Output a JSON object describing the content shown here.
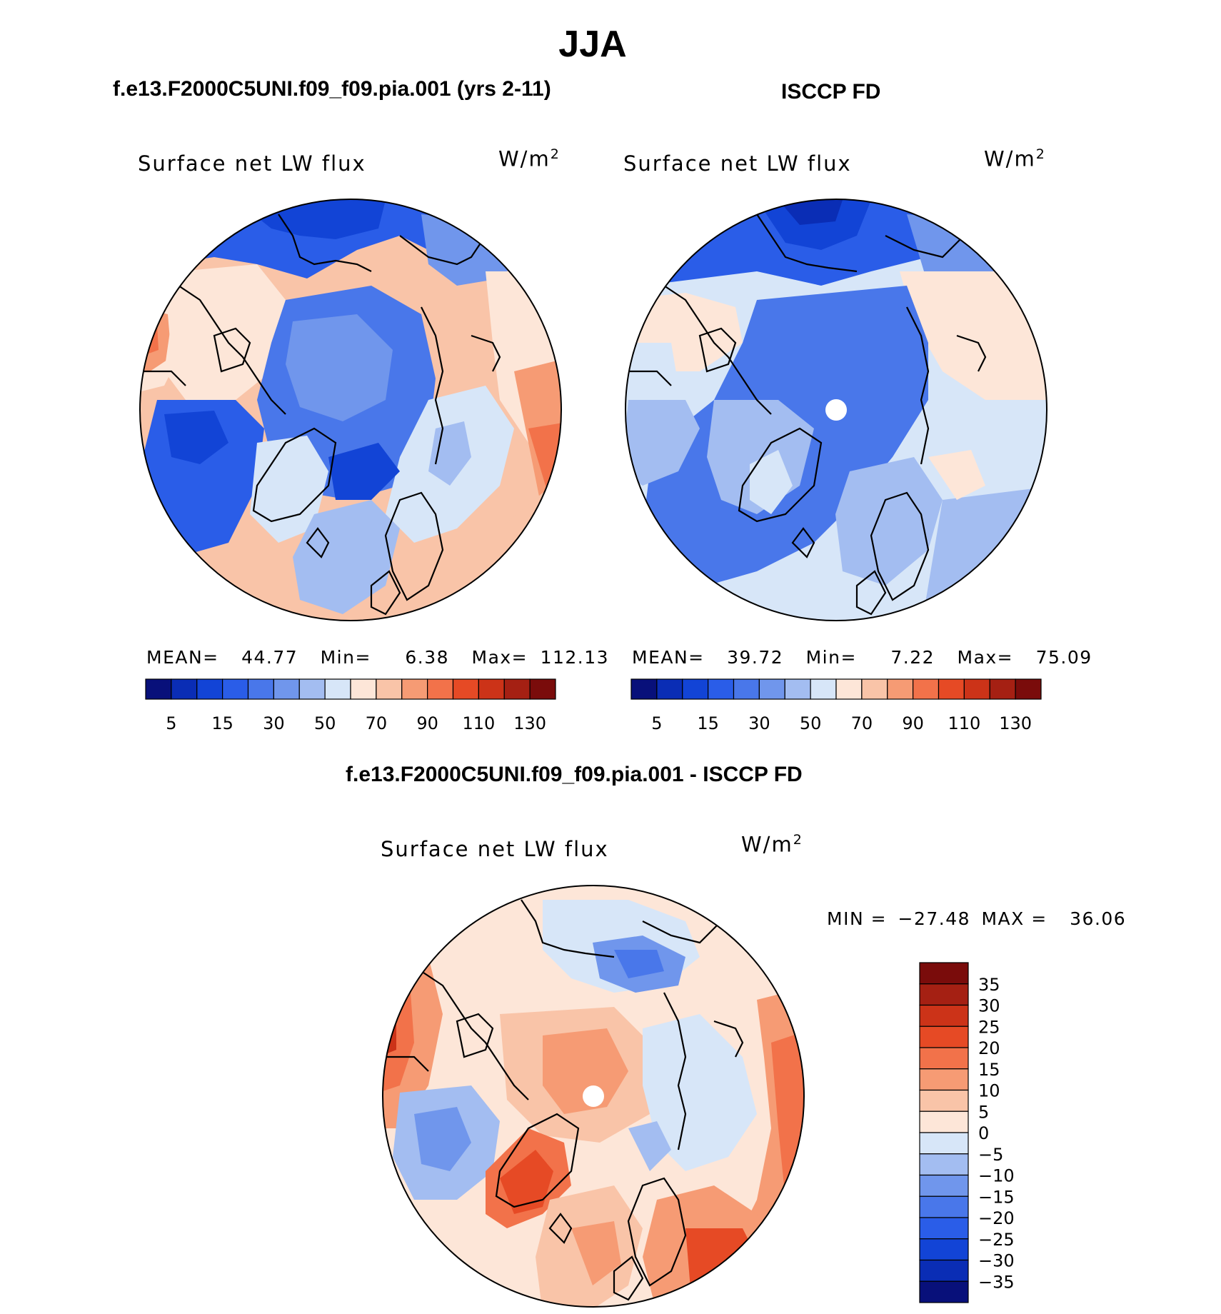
{
  "title": "JJA",
  "colors": {
    "base_levels": [
      "#08107a",
      "#0a2db5",
      "#1244d6",
      "#2a5de8",
      "#4977ea",
      "#7096ec",
      "#a3bdf1",
      "#d7e6f8",
      "#fde6d8",
      "#f9c4a8",
      "#f69b74",
      "#f2724a",
      "#e64a25",
      "#cc3318",
      "#a52013",
      "#7a0c0b"
    ],
    "diff_levels": [
      "#08107a",
      "#0a2db5",
      "#1244d6",
      "#2a5de8",
      "#4977ea",
      "#7096ec",
      "#a3bdf1",
      "#d7e6f8",
      "#fde6d8",
      "#f9c4a8",
      "#f69b74",
      "#f2724a",
      "#e64a25",
      "#cc3318",
      "#a52013",
      "#7a0c0b"
    ]
  },
  "chart_data": [
    {
      "type": "heatmap",
      "projection": "north-polar-stereographic",
      "title": "f.e13.F2000C5UNI.f09_f09.pia.001 (yrs 2-11)",
      "variable": "Surface net LW flux",
      "units_base": "W/m",
      "units_exp": "2",
      "stats": {
        "mean_label": "MEAN=",
        "mean": "44.77",
        "min_label": "Min=",
        "min": "6.38",
        "max_label": "Max=",
        "max": "112.13"
      },
      "colorbar": {
        "orientation": "horizontal",
        "levels": 16,
        "tick_labels": [
          "5",
          "15",
          "30",
          "50",
          "70",
          "90",
          "110",
          "130"
        ]
      }
    },
    {
      "type": "heatmap",
      "projection": "north-polar-stereographic",
      "title": "ISCCP FD",
      "variable": "Surface net LW flux",
      "units_base": "W/m",
      "units_exp": "2",
      "stats": {
        "mean_label": "MEAN=",
        "mean": "39.72",
        "min_label": "Min=",
        "min": "7.22",
        "max_label": "Max=",
        "max": "75.09"
      },
      "colorbar": {
        "orientation": "horizontal",
        "levels": 16,
        "tick_labels": [
          "5",
          "15",
          "30",
          "50",
          "70",
          "90",
          "110",
          "130"
        ]
      }
    },
    {
      "type": "heatmap",
      "projection": "north-polar-stereographic",
      "title": "f.e13.F2000C5UNI.f09_f09.pia.001 - ISCCP FD",
      "variable": "Surface net LW flux",
      "units_base": "W/m",
      "units_exp": "2",
      "stats": {
        "min_label": "MIN =",
        "min": "−27.48",
        "max_label": "MAX =",
        "max": "36.06"
      },
      "colorbar": {
        "orientation": "vertical",
        "levels": 16,
        "tick_labels": [
          "35",
          "30",
          "25",
          "20",
          "15",
          "10",
          "5",
          "0",
          "−5",
          "−10",
          "−15",
          "−20",
          "−25",
          "−30",
          "−35"
        ]
      }
    }
  ]
}
